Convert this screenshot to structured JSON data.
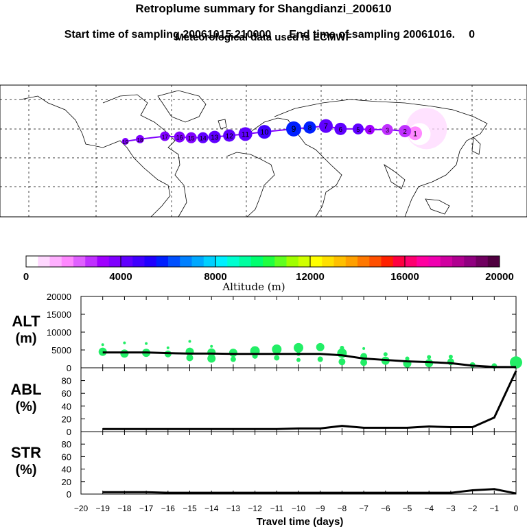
{
  "header": {
    "title": "Retroplume summary for Shangdianzi_200610",
    "start_label": "Start time of sampling 20061015.210000",
    "end_label": "End time of sampling 20061016.",
    "end_value": "0",
    "met_label": "Meteorological data used is ECMWF"
  },
  "colorbar": {
    "ticks": [
      "0",
      "4000",
      "8000",
      "12000",
      "16000",
      "20000"
    ],
    "label": "Altitude (m)",
    "min": 0,
    "max": 20000,
    "colors": [
      "#ffffff",
      "#ffd8ff",
      "#ffb0ff",
      "#ff88ff",
      "#e060ff",
      "#c030ff",
      "#a000ff",
      "#8000ff",
      "#6000ff",
      "#4000ff",
      "#2000ff",
      "#0020ff",
      "#0050ff",
      "#0080ff",
      "#00a8ff",
      "#00d0ff",
      "#00f0ff",
      "#00ffd0",
      "#00ffa0",
      "#00ff70",
      "#20ff40",
      "#60ff20",
      "#a0ff00",
      "#d0ff00",
      "#ffff00",
      "#ffe000",
      "#ffc000",
      "#ffa000",
      "#ff7800",
      "#ff5000",
      "#ff2000",
      "#ff0040",
      "#ff0070",
      "#ff00a0",
      "#f000b0",
      "#d000a0",
      "#b00090",
      "#900080",
      "#700060",
      "#500040"
    ]
  },
  "map": {
    "trajectory": [
      {
        "lon": 116,
        "lat": 40,
        "alt": 300,
        "size": 16,
        "label": ""
      },
      {
        "lon": 113,
        "lat": 41,
        "alt": 1500,
        "size": 10,
        "label": "1"
      },
      {
        "lon": 106,
        "lat": 44,
        "alt": 2600,
        "size": 9,
        "label": "2"
      },
      {
        "lon": 94,
        "lat": 46,
        "alt": 2800,
        "size": 8,
        "label": "3"
      },
      {
        "lon": 82,
        "lat": 46,
        "alt": 3000,
        "size": 7,
        "label": "4"
      },
      {
        "lon": 74,
        "lat": 47,
        "alt": 4000,
        "size": 8,
        "label": "5"
      },
      {
        "lon": 62,
        "lat": 47,
        "alt": 4200,
        "size": 9,
        "label": "6"
      },
      {
        "lon": 52,
        "lat": 51,
        "alt": 4400,
        "size": 10,
        "label": "7"
      },
      {
        "lon": 41,
        "lat": 49,
        "alt": 5600,
        "size": 9,
        "label": "8"
      },
      {
        "lon": 30,
        "lat": 47,
        "alt": 5800,
        "size": 11,
        "label": "9"
      },
      {
        "lon": 10,
        "lat": 43,
        "alt": 4600,
        "size": 10,
        "label": "10"
      },
      {
        "lon": -3,
        "lat": 40,
        "alt": 4400,
        "size": 10,
        "label": "11"
      },
      {
        "lon": -14,
        "lat": 38,
        "alt": 4300,
        "size": 9,
        "label": "12"
      },
      {
        "lon": -24,
        "lat": 36,
        "alt": 4100,
        "size": 9,
        "label": "13"
      },
      {
        "lon": -32,
        "lat": 35,
        "alt": 4000,
        "size": 8,
        "label": "14"
      },
      {
        "lon": -40,
        "lat": 35,
        "alt": 3900,
        "size": 8,
        "label": "15"
      },
      {
        "lon": -48,
        "lat": 36,
        "alt": 3800,
        "size": 8,
        "label": "16"
      },
      {
        "lon": -58,
        "lat": 37,
        "alt": 3800,
        "size": 7,
        "label": "17"
      },
      {
        "lon": -75,
        "lat": 33,
        "alt": 3700,
        "size": 6,
        "label": "18"
      },
      {
        "lon": -85,
        "lat": 30,
        "alt": 3500,
        "size": 5,
        "label": "19"
      }
    ]
  },
  "chart_data": [
    {
      "type": "line",
      "title": "ALT (m)",
      "ylabel": "ALT (m)",
      "ylim": [
        0,
        20000
      ],
      "yticks": [
        0,
        5000,
        10000,
        15000,
        20000
      ],
      "x": [
        -19,
        -18,
        -17,
        -16,
        -15,
        -14,
        -13,
        -12,
        -11,
        -10,
        -9,
        -8,
        -7,
        -6,
        -5,
        -4,
        -3,
        -2,
        -1,
        0
      ],
      "series": [
        {
          "name": "median",
          "values": [
            4300,
            4300,
            4300,
            4100,
            4000,
            4000,
            3900,
            3900,
            3900,
            3900,
            3900,
            3500,
            2600,
            2200,
            1800,
            1600,
            1300,
            600,
            250,
            200
          ]
        },
        {
          "name": "plume",
          "points": [
            {
              "x": -19,
              "y": 4500,
              "s": 6
            },
            {
              "x": -19,
              "y": 6500,
              "s": 2
            },
            {
              "x": -18,
              "y": 4000,
              "s": 6
            },
            {
              "x": -18,
              "y": 7000,
              "s": 2
            },
            {
              "x": -17,
              "y": 4200,
              "s": 6
            },
            {
              "x": -17,
              "y": 6800,
              "s": 2
            },
            {
              "x": -16,
              "y": 3900,
              "s": 5
            },
            {
              "x": -16,
              "y": 5600,
              "s": 2
            },
            {
              "x": -15,
              "y": 4500,
              "s": 6
            },
            {
              "x": -15,
              "y": 2800,
              "s": 5
            },
            {
              "x": -15,
              "y": 7400,
              "s": 2
            },
            {
              "x": -14,
              "y": 2600,
              "s": 6
            },
            {
              "x": -14,
              "y": 4300,
              "s": 6
            },
            {
              "x": -14,
              "y": 6000,
              "s": 2
            },
            {
              "x": -13,
              "y": 4200,
              "s": 6
            },
            {
              "x": -13,
              "y": 2400,
              "s": 4
            },
            {
              "x": -12,
              "y": 4700,
              "s": 7
            },
            {
              "x": -12,
              "y": 3300,
              "s": 4
            },
            {
              "x": -11,
              "y": 5200,
              "s": 7
            },
            {
              "x": -11,
              "y": 2800,
              "s": 4
            },
            {
              "x": -10,
              "y": 5600,
              "s": 7
            },
            {
              "x": -10,
              "y": 3900,
              "s": 3
            },
            {
              "x": -10,
              "y": 2200,
              "s": 3
            },
            {
              "x": -9,
              "y": 5800,
              "s": 6
            },
            {
              "x": -9,
              "y": 2400,
              "s": 4
            },
            {
              "x": -8,
              "y": 4100,
              "s": 7
            },
            {
              "x": -8,
              "y": 1700,
              "s": 5
            },
            {
              "x": -8,
              "y": 5600,
              "s": 3
            },
            {
              "x": -7,
              "y": 3200,
              "s": 5
            },
            {
              "x": -7,
              "y": 1500,
              "s": 5
            },
            {
              "x": -7,
              "y": 5400,
              "s": 2
            },
            {
              "x": -6,
              "y": 2000,
              "s": 6
            },
            {
              "x": -6,
              "y": 3800,
              "s": 3
            },
            {
              "x": -5,
              "y": 1200,
              "s": 6
            },
            {
              "x": -5,
              "y": 2600,
              "s": 3
            },
            {
              "x": -4,
              "y": 1300,
              "s": 6
            },
            {
              "x": -4,
              "y": 3000,
              "s": 3
            },
            {
              "x": -3,
              "y": 1700,
              "s": 5
            },
            {
              "x": -3,
              "y": 3100,
              "s": 3
            },
            {
              "x": -2,
              "y": 800,
              "s": 4
            },
            {
              "x": -1,
              "y": 500,
              "s": 4
            },
            {
              "x": 0,
              "y": 1500,
              "s": 9
            }
          ]
        }
      ]
    },
    {
      "type": "line",
      "title": "ABL (%)",
      "ylabel": "ABL (%)",
      "ylim": [
        0,
        100
      ],
      "yticks": [
        0,
        20,
        40,
        60,
        80
      ],
      "x": [
        -19,
        -18,
        -17,
        -16,
        -15,
        -14,
        -13,
        -12,
        -11,
        -10,
        -9,
        -8,
        -7,
        -6,
        -5,
        -4,
        -3,
        -2,
        -1,
        0
      ],
      "series": [
        {
          "name": "ABL",
          "values": [
            4,
            4,
            4,
            4,
            4,
            4,
            4,
            4,
            4,
            5,
            5,
            9,
            6,
            6,
            6,
            8,
            7,
            7,
            22,
            95
          ]
        }
      ]
    },
    {
      "type": "line",
      "title": "STR (%)",
      "ylabel": "STR (%)",
      "ylim": [
        0,
        100
      ],
      "yticks": [
        0,
        20,
        40,
        60,
        80
      ],
      "x": [
        -19,
        -18,
        -17,
        -16,
        -15,
        -14,
        -13,
        -12,
        -11,
        -10,
        -9,
        -8,
        -7,
        -6,
        -5,
        -4,
        -3,
        -2,
        -1,
        0
      ],
      "series": [
        {
          "name": "STR",
          "values": [
            3,
            3,
            3,
            2,
            2,
            2,
            2,
            2,
            2,
            2,
            2,
            2,
            2,
            2,
            2,
            2,
            2,
            6,
            8,
            1
          ]
        }
      ]
    }
  ],
  "x_axis": {
    "label": "Travel time (days)",
    "tick_labels": [
      "−20",
      "−19",
      "−18",
      "−17",
      "−16",
      "−15",
      "−14",
      "−13",
      "−12",
      "−11",
      "−10",
      "−9",
      "−8",
      "−7",
      "−6",
      "−5",
      "−4",
      "−3",
      "−2",
      "−1",
      "0"
    ],
    "xlim": [
      -20,
      0
    ]
  }
}
